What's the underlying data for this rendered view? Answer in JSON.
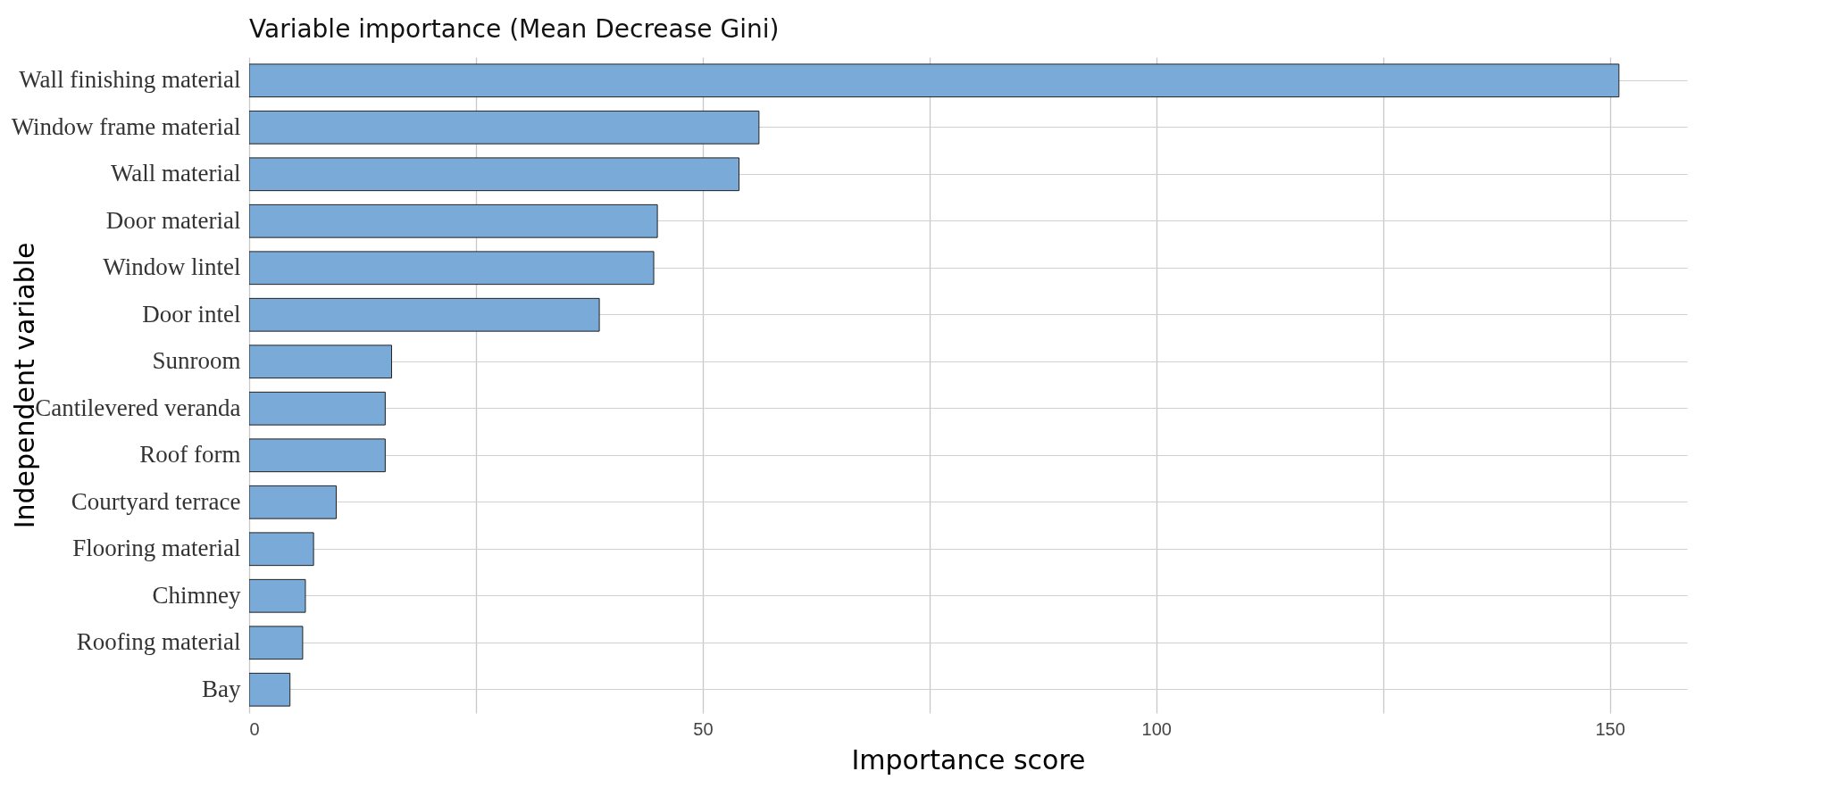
{
  "chart_data": {
    "type": "bar",
    "orientation": "horizontal",
    "title": "Variable importance   (Mean Decrease Gini)",
    "xlabel": "Importance score",
    "ylabel": "Independent variable",
    "categories": [
      "Wall finishing material",
      "Window frame material",
      "Wall material",
      "Door material",
      "Window lintel",
      "Door intel",
      "Sunroom",
      "Cantilevered veranda",
      "Roof  form",
      "Courtyard terrace",
      "Flooring material",
      "Chimney",
      "Roofing material",
      "Bay"
    ],
    "values": [
      151,
      56.2,
      54,
      45,
      44.6,
      38.6,
      15.7,
      15,
      15,
      9.6,
      7.1,
      6.2,
      5.9,
      4.5
    ],
    "color": "#7aaad7",
    "xlim": [
      0,
      158.5
    ],
    "xticks": [
      0,
      {
        "value": 25,
        "label": null
      },
      50,
      {
        "value": 75,
        "label": null
      },
      100,
      {
        "value": 125,
        "label": null
      },
      150
    ],
    "grid": true
  }
}
